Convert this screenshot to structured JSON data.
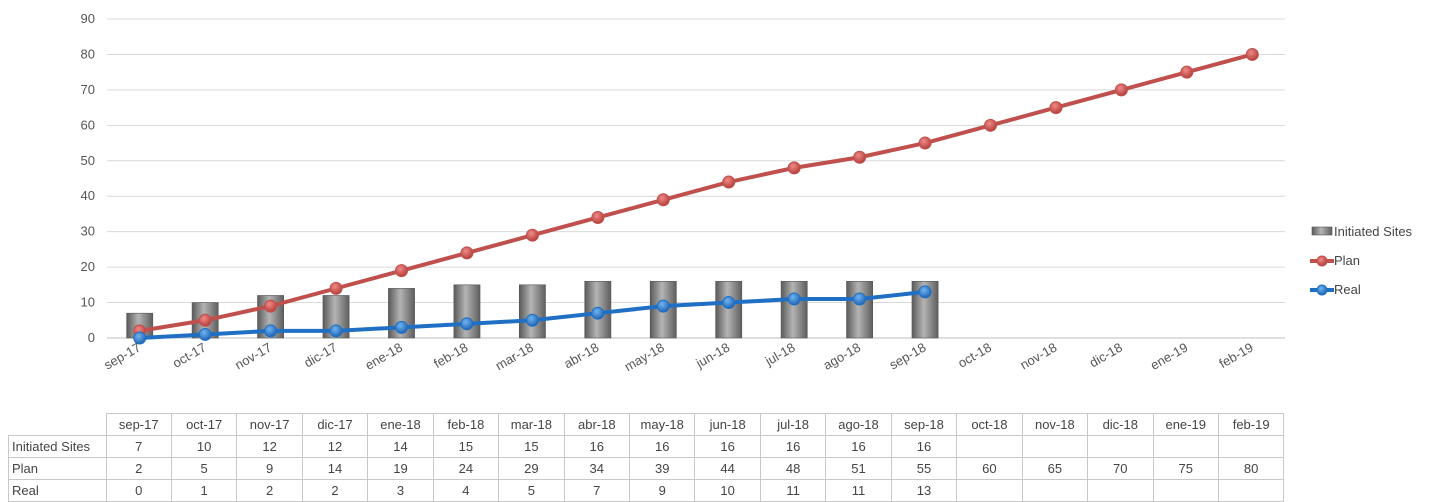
{
  "chart_data": {
    "type": "bar",
    "categories": [
      "sep-17",
      "oct-17",
      "nov-17",
      "dic-17",
      "ene-18",
      "feb-18",
      "mar-18",
      "abr-18",
      "may-18",
      "jun-18",
      "jul-18",
      "ago-18",
      "sep-18",
      "oct-18",
      "nov-18",
      "dic-18",
      "ene-19",
      "feb-19"
    ],
    "ylim": [
      0,
      90
    ],
    "yticks": [
      0,
      10,
      20,
      30,
      40,
      50,
      60,
      70,
      80,
      90
    ],
    "grid": true,
    "legend_position": "right",
    "series": [
      {
        "name": "Initiated Sites",
        "type": "bar",
        "color": "#8c8c8c",
        "values": [
          7,
          10,
          12,
          12,
          14,
          15,
          15,
          16,
          16,
          16,
          16,
          16,
          16,
          null,
          null,
          null,
          null,
          null
        ]
      },
      {
        "name": "Plan",
        "type": "line",
        "color": "#c0504d",
        "values": [
          2,
          5,
          9,
          14,
          19,
          24,
          29,
          34,
          39,
          44,
          48,
          51,
          55,
          60,
          65,
          70,
          75,
          80
        ]
      },
      {
        "name": "Real",
        "type": "line",
        "color": "#1f6fc4",
        "values": [
          0,
          1,
          2,
          2,
          3,
          4,
          5,
          7,
          9,
          10,
          11,
          11,
          13,
          null,
          null,
          null,
          null,
          null
        ]
      }
    ]
  }
}
